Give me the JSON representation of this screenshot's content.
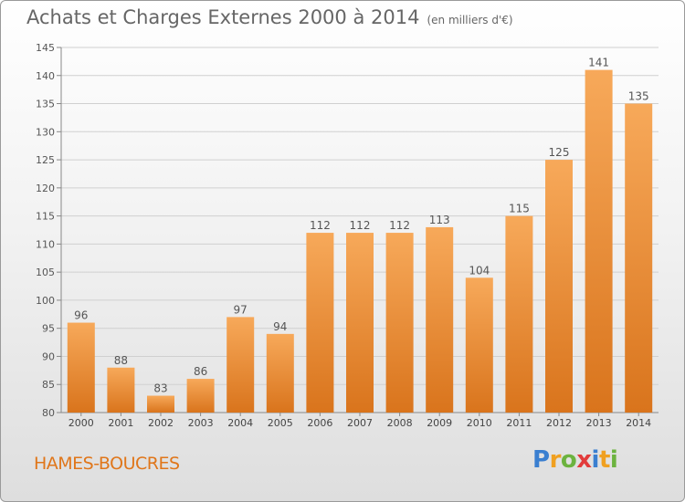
{
  "title": "Achats et Charges Externes 2000 à 2014",
  "subtitle": "(en milliers d'€)",
  "place": "HAMES-BOUCRES",
  "logo": {
    "letters": [
      "P",
      "r",
      "o",
      "x",
      "i",
      "t",
      "i"
    ],
    "colors": [
      "#3a7fd0",
      "#f0a020",
      "#6cb33f",
      "#e23b3b",
      "#3a7fd0",
      "#f0a020",
      "#6cb33f"
    ]
  },
  "colors": {
    "bar_top": "#f7a95a",
    "bar_bottom": "#d9741c",
    "text": "#555555",
    "grid": "#d0d0d0"
  },
  "chart_data": {
    "type": "bar",
    "title": "Achats et Charges Externes 2000 à 2014",
    "subtitle": "(en milliers d'€)",
    "categories": [
      "2000",
      "2001",
      "2002",
      "2003",
      "2004",
      "2005",
      "2006",
      "2007",
      "2008",
      "2009",
      "2010",
      "2011",
      "2012",
      "2013",
      "2014"
    ],
    "values": [
      96,
      88,
      83,
      86,
      97,
      94,
      112,
      112,
      112,
      113,
      104,
      115,
      125,
      141,
      135
    ],
    "ylim": [
      80,
      145
    ],
    "yticks": [
      80,
      85,
      90,
      95,
      100,
      105,
      110,
      115,
      120,
      125,
      130,
      135,
      140,
      145
    ],
    "grid": true,
    "data_labels": true
  }
}
